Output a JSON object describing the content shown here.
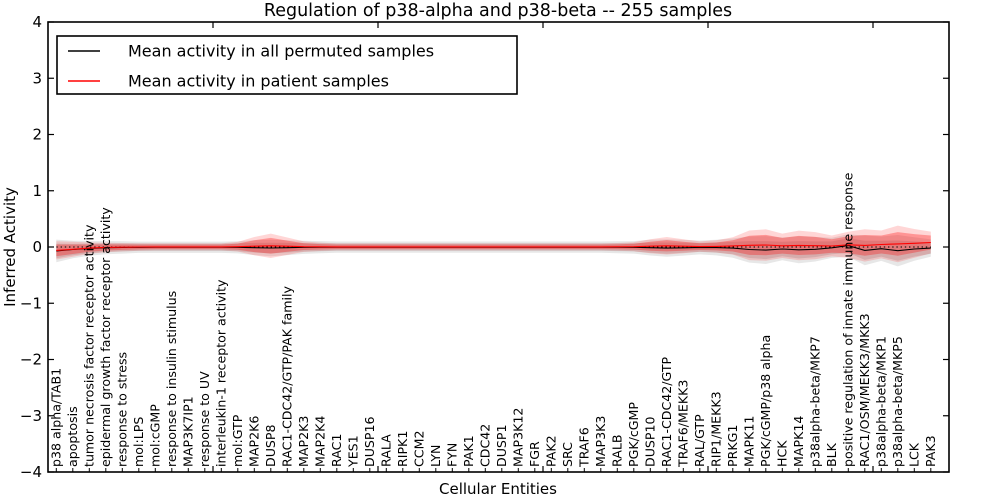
{
  "title": "Regulation of p38-alpha and p38-beta -- 255 samples",
  "axes": {
    "x_label": "Cellular Entities",
    "y_label": "Inferred Activity",
    "y_ticks": [
      {
        "label": "4",
        "value": 4
      },
      {
        "label": "3",
        "value": 3
      },
      {
        "label": "2",
        "value": 2
      },
      {
        "label": "1",
        "value": 1
      },
      {
        "label": "0",
        "value": 0
      },
      {
        "label": "−1",
        "value": -1
      },
      {
        "label": "−2",
        "value": -2
      },
      {
        "label": "−3",
        "value": -3
      },
      {
        "label": "−4",
        "value": -4
      }
    ],
    "x_major_values": [
      10,
      20,
      30,
      40,
      50
    ]
  },
  "legend": {
    "items": [
      {
        "label": "Mean activity in all permuted samples",
        "color": "#000000"
      },
      {
        "label": "Mean activity in patient samples",
        "color": "#ff0000"
      }
    ]
  },
  "colors": {
    "permuted_line": "#000000",
    "permuted_band": "#a8a8a8",
    "patient_line": "#ff0000",
    "patient_band": "#ff0000",
    "zero_line": "#000000",
    "frame": "#000000"
  },
  "chart_data": {
    "type": "line",
    "title": "Regulation of p38-alpha and p38-beta -- 255 samples",
    "xlabel": "Cellular Entities",
    "ylabel": "Inferred Activity",
    "ylim": [
      -4,
      4
    ],
    "grid": false,
    "zero_reference_line": true,
    "legend_position": "upper left",
    "categories": [
      "p38 alpha/TAB1",
      "apoptosis",
      "tumor necrosis factor receptor activity",
      "epidermal growth factor receptor activity",
      "response to stress",
      "mol:LPS",
      "mol:cGMP",
      "response to insulin stimulus",
      "MAP3K7IP1",
      "response to UV",
      "interleukin-1 receptor activity",
      "mol:GTP",
      "MAP2K6",
      "DUSP8",
      "RAC1-CDC42/GTP/PAK family",
      "MAP2K3",
      "MAP2K4",
      "RAC1",
      "YES1",
      "DUSP16",
      "RALA",
      "RIPK1",
      "CCM2",
      "LYN",
      "FYN",
      "PAK1",
      "CDC42",
      "DUSP1",
      "MAP3K12",
      "FGR",
      "PAK2",
      "SRC",
      "TRAF6",
      "MAP3K3",
      "RALB",
      "PGK/cGMP",
      "DUSP10",
      "RAC1-CDC42/GTP",
      "TRAF6/MEKK3",
      "RAL/GTP",
      "RIP1/MEKK3",
      "PRKG1",
      "MAPK11",
      "PGK/cGMP/p38 alpha",
      "HCK",
      "MAPK14",
      "p38alpha-beta/MKP7",
      "BLK",
      "positive regulation of innate immune response",
      "RAC1/OSM/MEKK3/MKK3",
      "p38alpha-beta/MKP1",
      "p38alpha-beta/MKP5",
      "LCK",
      "PAK3"
    ],
    "series": [
      {
        "name": "Mean activity in all permuted samples",
        "color": "#000000",
        "values": [
          -0.07,
          -0.045,
          -0.025,
          -0.012,
          -0.008,
          -0.005,
          -0.004,
          -0.004,
          -0.004,
          -0.004,
          -0.004,
          -0.006,
          -0.012,
          -0.018,
          -0.012,
          -0.006,
          -0.004,
          -0.003,
          -0.003,
          -0.003,
          -0.003,
          -0.003,
          -0.003,
          -0.003,
          -0.003,
          -0.003,
          -0.003,
          -0.003,
          -0.003,
          -0.003,
          -0.003,
          -0.003,
          -0.003,
          -0.003,
          -0.004,
          -0.006,
          -0.012,
          -0.02,
          -0.014,
          -0.008,
          -0.01,
          -0.02,
          -0.045,
          -0.055,
          -0.035,
          -0.05,
          -0.04,
          -0.015,
          0.025,
          -0.06,
          -0.03,
          -0.065,
          -0.035,
          -0.02
        ],
        "band_halfwidth": [
          0.13,
          0.1,
          0.085,
          0.075,
          0.07,
          0.065,
          0.065,
          0.065,
          0.065,
          0.065,
          0.065,
          0.07,
          0.085,
          0.095,
          0.085,
          0.075,
          0.07,
          0.065,
          0.065,
          0.065,
          0.065,
          0.065,
          0.065,
          0.065,
          0.065,
          0.065,
          0.065,
          0.065,
          0.065,
          0.065,
          0.065,
          0.065,
          0.065,
          0.065,
          0.068,
          0.072,
          0.09,
          0.1,
          0.09,
          0.08,
          0.09,
          0.11,
          0.15,
          0.16,
          0.13,
          0.155,
          0.14,
          0.115,
          0.13,
          0.17,
          0.14,
          0.18,
          0.135,
          0.1
        ]
      },
      {
        "name": "Mean activity in patient samples",
        "color": "#ff0000",
        "values": [
          -0.06,
          -0.04,
          -0.02,
          -0.008,
          -0.003,
          0.0,
          0.002,
          0.002,
          0.002,
          0.002,
          0.002,
          0.005,
          0.015,
          0.022,
          0.014,
          0.006,
          0.003,
          0.002,
          0.002,
          0.002,
          0.002,
          0.002,
          0.002,
          0.002,
          0.002,
          0.002,
          0.002,
          0.002,
          0.002,
          0.002,
          0.002,
          0.002,
          0.002,
          0.002,
          0.003,
          0.005,
          0.014,
          0.022,
          0.014,
          0.007,
          0.01,
          0.02,
          0.03,
          0.035,
          0.022,
          0.028,
          0.024,
          0.018,
          0.04,
          0.028,
          0.045,
          0.055,
          0.065,
          0.08
        ],
        "band_halfwidth": [
          0.105,
          0.085,
          0.065,
          0.055,
          0.048,
          0.042,
          0.04,
          0.04,
          0.04,
          0.04,
          0.04,
          0.055,
          0.105,
          0.14,
          0.1,
          0.06,
          0.048,
          0.04,
          0.04,
          0.04,
          0.04,
          0.04,
          0.04,
          0.04,
          0.04,
          0.04,
          0.04,
          0.04,
          0.04,
          0.04,
          0.04,
          0.04,
          0.04,
          0.04,
          0.044,
          0.052,
          0.08,
          0.1,
          0.08,
          0.06,
          0.07,
          0.1,
          0.17,
          0.18,
          0.14,
          0.17,
          0.155,
          0.12,
          0.15,
          0.185,
          0.16,
          0.21,
          0.165,
          0.125
        ]
      }
    ]
  }
}
